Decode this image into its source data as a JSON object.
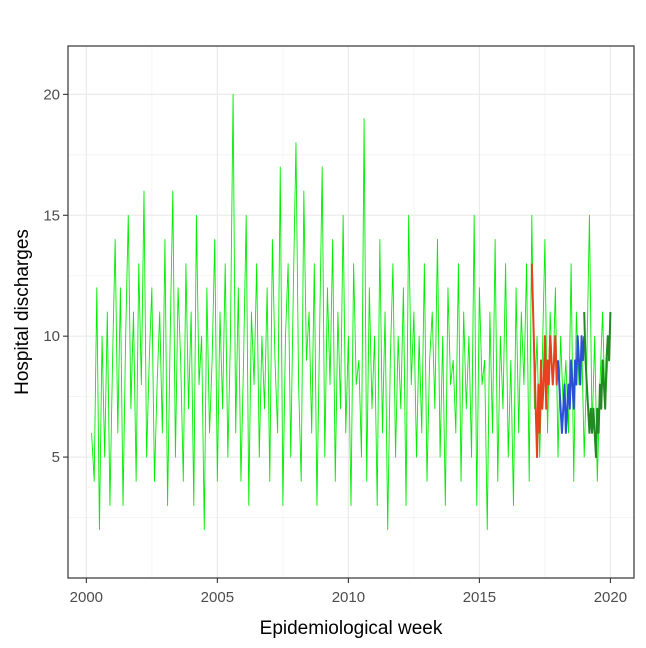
{
  "chart_data": {
    "type": "line",
    "title": "",
    "xlabel": "Epidemiological week",
    "ylabel": "Hospital discharges",
    "xlim": [
      1999.3,
      2020.9
    ],
    "ylim": [
      0,
      22
    ],
    "x_ticks": [
      2000,
      2005,
      2010,
      2015,
      2020
    ],
    "x_tick_labels": [
      "2000",
      "2005",
      "2010",
      "2015",
      "2020"
    ],
    "y_ticks": [
      5,
      10,
      15,
      20
    ],
    "y_tick_labels": [
      "5",
      "10",
      "15",
      "20"
    ],
    "grid": true,
    "legend": "none",
    "series": [
      {
        "color": "#00ee00",
        "x": [
          2000.2,
          2000.3,
          2000.4,
          2000.5,
          2000.6,
          2000.7,
          2000.8,
          2000.9,
          2001.0,
          2001.1,
          2001.2,
          2001.3,
          2001.4,
          2001.5,
          2001.6,
          2001.7,
          2001.8,
          2001.9,
          2002.0,
          2002.1,
          2002.2,
          2002.3,
          2002.4,
          2002.5,
          2002.6,
          2002.7,
          2002.8,
          2002.9,
          2003.0,
          2003.1,
          2003.2,
          2003.3,
          2003.4,
          2003.5,
          2003.6,
          2003.7,
          2003.8,
          2003.9,
          2004.0,
          2004.1,
          2004.2,
          2004.3,
          2004.4,
          2004.5,
          2004.6,
          2004.7,
          2004.8,
          2004.9,
          2005.0,
          2005.1,
          2005.2,
          2005.3,
          2005.4,
          2005.5,
          2005.6,
          2005.7,
          2005.8,
          2005.9,
          2006.0,
          2006.1,
          2006.2,
          2006.3,
          2006.4,
          2006.5,
          2006.6,
          2006.7,
          2006.8,
          2006.9,
          2007.0,
          2007.1,
          2007.2,
          2007.3,
          2007.4,
          2007.5,
          2007.6,
          2007.7,
          2007.8,
          2007.9,
          2008.0,
          2008.1,
          2008.2,
          2008.3,
          2008.4,
          2008.5,
          2008.6,
          2008.7,
          2008.8,
          2008.9,
          2009.0,
          2009.1,
          2009.2,
          2009.3,
          2009.4,
          2009.5,
          2009.6,
          2009.7,
          2009.8,
          2009.9,
          2010.0,
          2010.1,
          2010.2,
          2010.3,
          2010.4,
          2010.5,
          2010.6,
          2010.7,
          2010.8,
          2010.9,
          2011.0,
          2011.1,
          2011.2,
          2011.3,
          2011.4,
          2011.5,
          2011.6,
          2011.7,
          2011.8,
          2011.9,
          2012.0,
          2012.1,
          2012.2,
          2012.3,
          2012.4,
          2012.5,
          2012.6,
          2012.7,
          2012.8,
          2012.9,
          2013.0,
          2013.1,
          2013.2,
          2013.3,
          2013.4,
          2013.5,
          2013.6,
          2013.7,
          2013.8,
          2013.9,
          2014.0,
          2014.1,
          2014.2,
          2014.3,
          2014.4,
          2014.5,
          2014.6,
          2014.7,
          2014.8,
          2014.9,
          2015.0,
          2015.1,
          2015.2,
          2015.3,
          2015.4,
          2015.5,
          2015.6,
          2015.7,
          2015.8,
          2015.9,
          2016.0,
          2016.1,
          2016.2,
          2016.3,
          2016.4,
          2016.5,
          2016.6,
          2016.7,
          2016.8,
          2016.9,
          2017.0,
          2017.1,
          2017.2,
          2017.3,
          2017.4,
          2017.5,
          2017.6,
          2017.7,
          2017.8,
          2017.9,
          2018.0,
          2018.1,
          2018.2,
          2018.3,
          2018.4,
          2018.5,
          2018.6,
          2018.7,
          2018.8,
          2018.9,
          2019.0,
          2019.1,
          2019.2,
          2019.3,
          2019.4,
          2019.5,
          2019.6,
          2019.7,
          2019.8,
          2019.9,
          2020.0
        ],
        "values": [
          6,
          4,
          12,
          2,
          10,
          5,
          11,
          3,
          9,
          14,
          6,
          12,
          3,
          10,
          15,
          7,
          11,
          4,
          13,
          8,
          16,
          5,
          9,
          12,
          4,
          8,
          11,
          6,
          14,
          3,
          10,
          16,
          5,
          12,
          9,
          4,
          13,
          7,
          11,
          3,
          15,
          8,
          10,
          2,
          12,
          6,
          9,
          14,
          4,
          11,
          7,
          13,
          5,
          10,
          20,
          6,
          12,
          4,
          9,
          15,
          3,
          11,
          8,
          13,
          5,
          10,
          7,
          12,
          4,
          14,
          9,
          6,
          17,
          3,
          10,
          13,
          5,
          12,
          18,
          8,
          4,
          16,
          9,
          11,
          6,
          13,
          3,
          10,
          17,
          5,
          12,
          8,
          14,
          4,
          11,
          7,
          15,
          6,
          10,
          3,
          13,
          8,
          9,
          5,
          19,
          4,
          12,
          7,
          10,
          3,
          14,
          6,
          11,
          2,
          9,
          13,
          5,
          10,
          7,
          12,
          3,
          15,
          8,
          11,
          5,
          10,
          6,
          13,
          4,
          9,
          11,
          7,
          14,
          5,
          10,
          3,
          12,
          8,
          9,
          6,
          13,
          4,
          11,
          7,
          10,
          5,
          15,
          3,
          12,
          8,
          9,
          2,
          11,
          6,
          14,
          4,
          10,
          7,
          13,
          5,
          9,
          3,
          12,
          6,
          11,
          8,
          13,
          4,
          15,
          7,
          10,
          5,
          9,
          14,
          6,
          11,
          8,
          12,
          5,
          10,
          7,
          9,
          6,
          13,
          4,
          11,
          8,
          10,
          5,
          9,
          15,
          6,
          10,
          4,
          8,
          11,
          7,
          9,
          10
        ]
      },
      {
        "color": "#e8411d",
        "x": [
          2017.0,
          2017.05,
          2017.1,
          2017.15,
          2017.2,
          2017.25,
          2017.3,
          2017.35,
          2017.4,
          2017.45,
          2017.5,
          2017.55,
          2017.6,
          2017.65,
          2017.7,
          2017.75,
          2017.8,
          2017.85,
          2017.9,
          2017.95,
          2018.0
        ],
        "values": [
          13,
          11,
          9,
          7,
          5,
          8,
          6,
          9,
          7,
          8,
          10,
          7,
          9,
          8,
          10,
          9,
          8,
          9,
          10,
          8,
          9
        ]
      },
      {
        "color": "#2b50d8",
        "x": [
          2018.0,
          2018.05,
          2018.1,
          2018.15,
          2018.2,
          2018.25,
          2018.3,
          2018.35,
          2018.4,
          2018.45,
          2018.5,
          2018.55,
          2018.6,
          2018.65,
          2018.7,
          2018.75,
          2018.8,
          2018.85,
          2018.9,
          2018.95,
          2019.0
        ],
        "values": [
          9,
          8,
          7,
          6,
          7,
          8,
          6,
          7,
          8,
          7,
          9,
          8,
          7,
          9,
          8,
          10,
          9,
          8,
          10,
          9,
          10
        ]
      },
      {
        "color": "#238a23",
        "x": [
          2019.0,
          2019.05,
          2019.1,
          2019.15,
          2019.2,
          2019.25,
          2019.3,
          2019.35,
          2019.4,
          2019.45,
          2019.5,
          2019.55,
          2019.6,
          2019.65,
          2019.7,
          2019.75,
          2019.8,
          2019.85,
          2019.9,
          2019.95,
          2020.0
        ],
        "values": [
          11,
          9,
          8,
          7,
          6,
          7,
          6,
          7,
          6,
          5,
          7,
          6,
          8,
          7,
          9,
          8,
          7,
          9,
          10,
          9,
          11
        ]
      }
    ]
  }
}
